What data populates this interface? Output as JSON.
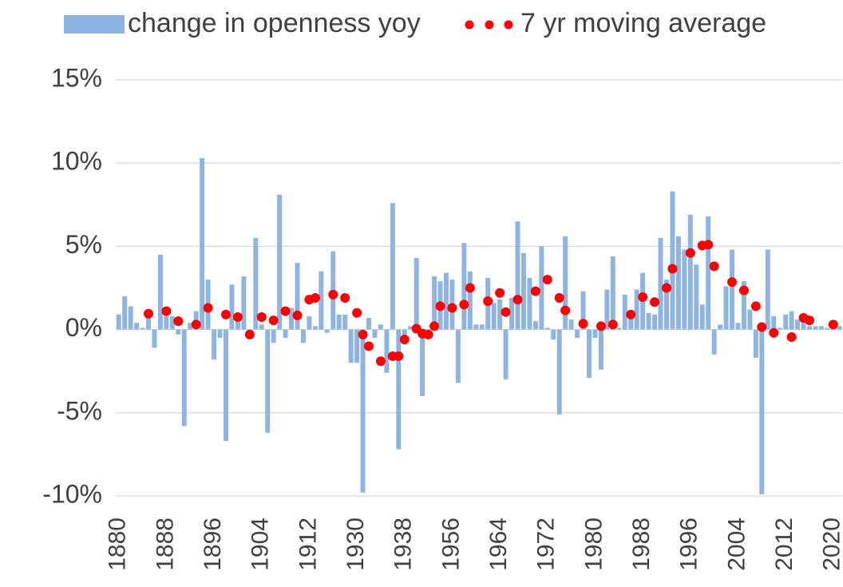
{
  "chart_data": {
    "type": "bar",
    "categories": [
      "1880",
      null,
      null,
      null,
      null,
      null,
      null,
      null,
      "1888",
      null,
      null,
      null,
      null,
      null,
      null,
      null,
      "1896",
      null,
      null,
      null,
      null,
      null,
      null,
      null,
      "1904",
      null,
      null,
      null,
      null,
      null,
      null,
      null,
      "1912",
      null,
      null,
      null,
      null,
      null,
      null,
      null,
      "1930",
      null,
      null,
      null,
      null,
      null,
      null,
      null,
      "1938",
      null,
      null,
      null,
      null,
      null,
      null,
      null,
      "1956",
      null,
      null,
      null,
      null,
      null,
      null,
      null,
      "1964",
      null,
      null,
      null,
      null,
      null,
      null,
      null,
      "1972",
      null,
      null,
      null,
      null,
      null,
      null,
      null,
      "1980",
      null,
      null,
      null,
      null,
      null,
      null,
      null,
      "1988",
      null,
      null,
      null,
      null,
      null,
      null,
      null,
      "1996",
      null,
      null,
      null,
      null,
      null,
      null,
      null,
      "2004",
      null,
      null,
      null,
      null,
      null,
      null,
      null,
      "2012",
      null,
      null,
      null,
      null,
      null,
      null,
      null,
      "2020",
      null
    ],
    "series": [
      {
        "name": "change in openness yoy",
        "type": "bar",
        "color": "#8eb4e3",
        "values": [
          0.9,
          2.0,
          1.4,
          0.4,
          0.1,
          0.7,
          -1.1,
          4.5,
          0.8,
          0.8,
          -0.3,
          -5.8,
          0.4,
          1.1,
          10.3,
          3.0,
          -1.8,
          -0.5,
          -6.7,
          2.7,
          1.0,
          3.2,
          -0.2,
          5.5,
          0.3,
          -6.2,
          -0.8,
          8.1,
          -0.5,
          1.3,
          4.0,
          -0.8,
          0.8,
          0.2,
          3.5,
          -0.2,
          4.7,
          0.9,
          0.9,
          -2.0,
          -2.0,
          -9.8,
          0.7,
          -0.5,
          0.3,
          -2.6,
          7.6,
          -7.2,
          -0.6,
          0.2,
          4.3,
          -4.0,
          -0.3,
          3.2,
          2.9,
          3.4,
          3.0,
          -3.2,
          5.2,
          3.5,
          0.3,
          0.3,
          3.1,
          1.6,
          1.8,
          -3.0,
          1.9,
          6.5,
          4.6,
          3.1,
          0.5,
          5.0,
          0.1,
          -0.6,
          -5.1,
          5.6,
          0.6,
          -0.5,
          2.3,
          -2.9,
          -0.5,
          -2.4,
          2.4,
          4.4,
          0.1,
          2.1,
          1.0,
          2.4,
          3.4,
          1.0,
          0.9,
          5.5,
          3.0,
          8.3,
          5.6,
          4.8,
          6.9,
          3.9,
          1.5,
          6.8,
          -1.5,
          0.3,
          2.6,
          4.8,
          0.4,
          2.9,
          1.2,
          -1.7,
          -9.9,
          4.8,
          0.8,
          0.1,
          0.9,
          1.1,
          0.6,
          0.5,
          0.2,
          0.2,
          0.2,
          0.1,
          0.3,
          0.2
        ]
      },
      {
        "name": "7 yr moving average",
        "type": "scatter",
        "color": "#ff0000",
        "values": [
          null,
          null,
          null,
          null,
          null,
          0.95,
          null,
          null,
          1.1,
          null,
          0.5,
          null,
          null,
          0.3,
          null,
          1.3,
          null,
          null,
          0.9,
          null,
          0.75,
          null,
          -0.3,
          null,
          0.75,
          null,
          0.55,
          null,
          1.1,
          null,
          0.85,
          null,
          1.8,
          1.9,
          null,
          null,
          2.1,
          null,
          1.9,
          null,
          1.0,
          -0.3,
          -1.0,
          null,
          -1.9,
          null,
          -1.6,
          -1.6,
          -0.6,
          null,
          0.05,
          -0.25,
          -0.3,
          0.2,
          1.4,
          null,
          1.3,
          null,
          1.5,
          2.5,
          null,
          null,
          1.7,
          null,
          2.2,
          1.05,
          null,
          1.8,
          null,
          null,
          2.3,
          null,
          3.0,
          null,
          1.9,
          1.15,
          null,
          null,
          0.35,
          null,
          null,
          0.2,
          null,
          0.3,
          null,
          null,
          0.9,
          null,
          1.95,
          null,
          1.65,
          null,
          2.5,
          3.65,
          null,
          null,
          4.6,
          null,
          5.05,
          5.1,
          3.8,
          null,
          null,
          2.85,
          null,
          2.35,
          null,
          1.4,
          0.15,
          null,
          -0.2,
          null,
          null,
          -0.45,
          null,
          0.7,
          0.55,
          null,
          null,
          null,
          0.3,
          null
        ]
      }
    ],
    "ylim": [
      -10,
      15
    ],
    "yticks": [
      {
        "value": -10,
        "label": "-10%"
      },
      {
        "value": -5,
        "label": "-5%"
      },
      {
        "value": 0,
        "label": "0%"
      },
      {
        "value": 5,
        "label": "5%"
      },
      {
        "value": 10,
        "label": "10%"
      },
      {
        "value": 15,
        "label": "15%"
      }
    ],
    "grid": true,
    "legend": "top"
  }
}
